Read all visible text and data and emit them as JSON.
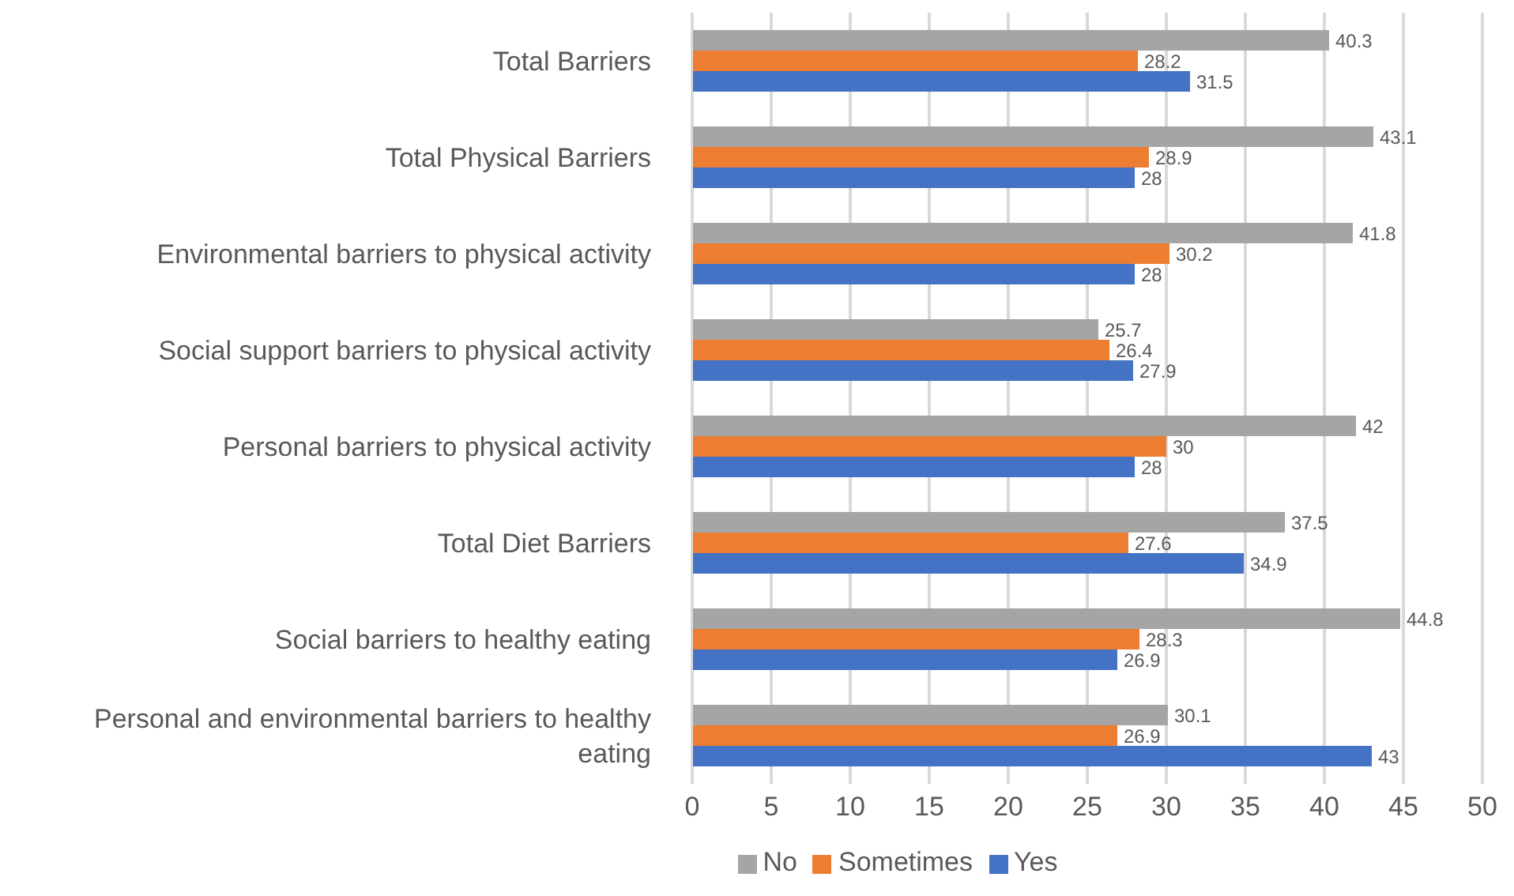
{
  "chart_data": {
    "type": "bar",
    "orientation": "horizontal",
    "categories": [
      "Total Barriers",
      "Total Physical Barriers",
      "Environmental barriers to physical activity",
      "Social support barriers to physical activity",
      "Personal barriers to physical activity",
      "Total Diet Barriers",
      "Social barriers to healthy eating",
      "Personal and environmental barriers to healthy eating"
    ],
    "series": [
      {
        "name": "No",
        "color": "#a5a5a5",
        "values": [
          40.3,
          43.1,
          41.8,
          25.7,
          42,
          37.5,
          44.8,
          30.1
        ]
      },
      {
        "name": "Sometimes",
        "color": "#ed7d31",
        "values": [
          28.2,
          28.9,
          30.2,
          26.4,
          30,
          27.6,
          28.3,
          26.9
        ]
      },
      {
        "name": "Yes",
        "color": "#4472c4",
        "values": [
          31.5,
          28,
          28,
          27.9,
          28,
          34.9,
          26.9,
          43
        ]
      }
    ],
    "xlim": [
      0,
      50
    ],
    "xticks": [
      0,
      5,
      10,
      15,
      20,
      25,
      30,
      35,
      40,
      45,
      50
    ],
    "grid": "x",
    "legend": "bottom",
    "data_labels": true
  }
}
